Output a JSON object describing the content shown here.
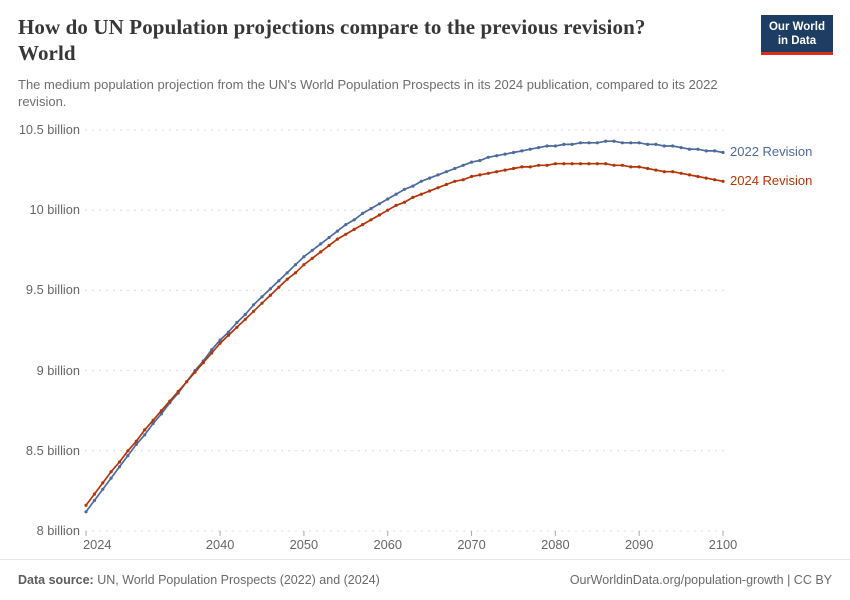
{
  "header": {
    "title_line1": "How do UN Population projections compare to the previous revision?",
    "title_line2": "World",
    "subtitle": "The medium population projection from the UN's World Population Prospects in its 2024 publication, compared to its 2022 revision.",
    "logo": {
      "line1": "Our World",
      "line2": "in Data",
      "bg_color": "#1d3d63",
      "accent_color": "#dc2e1c"
    }
  },
  "chart_data": {
    "type": "line",
    "title": "How do UN Population projections compare to the previous revision? World",
    "xlabel": "",
    "ylabel": "",
    "xlim": [
      2024,
      2100
    ],
    "ylim": [
      8,
      10.5
    ],
    "grid": "horizontal-dashed",
    "legend_position": "line-end-labels",
    "x": [
      2024,
      2025,
      2026,
      2027,
      2028,
      2029,
      2030,
      2031,
      2032,
      2033,
      2034,
      2035,
      2036,
      2037,
      2038,
      2039,
      2040,
      2041,
      2042,
      2043,
      2044,
      2045,
      2046,
      2047,
      2048,
      2049,
      2050,
      2051,
      2052,
      2053,
      2054,
      2055,
      2056,
      2057,
      2058,
      2059,
      2060,
      2061,
      2062,
      2063,
      2064,
      2065,
      2066,
      2067,
      2068,
      2069,
      2070,
      2071,
      2072,
      2073,
      2074,
      2075,
      2076,
      2077,
      2078,
      2079,
      2080,
      2081,
      2082,
      2083,
      2084,
      2085,
      2086,
      2087,
      2088,
      2089,
      2090,
      2091,
      2092,
      2093,
      2094,
      2095,
      2096,
      2097,
      2098,
      2099,
      2100
    ],
    "series": [
      {
        "name": "2022 Revision",
        "color": "#4c6a9c",
        "unit": "billion",
        "values": [
          8.12,
          8.19,
          8.26,
          8.33,
          8.4,
          8.47,
          8.54,
          8.6,
          8.67,
          8.73,
          8.8,
          8.86,
          8.93,
          9.0,
          9.06,
          9.13,
          9.19,
          9.24,
          9.3,
          9.35,
          9.41,
          9.46,
          9.51,
          9.56,
          9.61,
          9.66,
          9.71,
          9.75,
          9.79,
          9.83,
          9.87,
          9.91,
          9.94,
          9.98,
          10.01,
          10.04,
          10.07,
          10.1,
          10.13,
          10.15,
          10.18,
          10.2,
          10.22,
          10.24,
          10.26,
          10.28,
          10.3,
          10.31,
          10.33,
          10.34,
          10.35,
          10.36,
          10.37,
          10.38,
          10.39,
          10.4,
          10.4,
          10.41,
          10.41,
          10.42,
          10.42,
          10.42,
          10.43,
          10.43,
          10.42,
          10.42,
          10.42,
          10.41,
          10.41,
          10.4,
          10.4,
          10.39,
          10.38,
          10.38,
          10.37,
          10.37,
          10.36
        ]
      },
      {
        "name": "2024 Revision",
        "color": "#b13507",
        "unit": "billion",
        "values": [
          8.16,
          8.23,
          8.3,
          8.37,
          8.43,
          8.5,
          8.56,
          8.63,
          8.69,
          8.75,
          8.81,
          8.87,
          8.93,
          8.99,
          9.05,
          9.11,
          9.17,
          9.22,
          9.27,
          9.32,
          9.37,
          9.42,
          9.47,
          9.52,
          9.57,
          9.61,
          9.66,
          9.7,
          9.74,
          9.78,
          9.82,
          9.85,
          9.88,
          9.91,
          9.94,
          9.97,
          10.0,
          10.03,
          10.05,
          10.08,
          10.1,
          10.12,
          10.14,
          10.16,
          10.18,
          10.19,
          10.21,
          10.22,
          10.23,
          10.24,
          10.25,
          10.26,
          10.27,
          10.27,
          10.28,
          10.28,
          10.29,
          10.29,
          10.29,
          10.29,
          10.29,
          10.29,
          10.29,
          10.28,
          10.28,
          10.27,
          10.27,
          10.26,
          10.25,
          10.24,
          10.24,
          10.23,
          10.22,
          10.21,
          10.2,
          10.19,
          10.18
        ]
      }
    ],
    "y_ticks": [
      {
        "value": 10.5,
        "label": "10.5 billion"
      },
      {
        "value": 10,
        "label": "10 billion"
      },
      {
        "value": 9.5,
        "label": "9.5 billion"
      },
      {
        "value": 9,
        "label": "9 billion"
      },
      {
        "value": 8.5,
        "label": "8.5 billion"
      },
      {
        "value": 8,
        "label": "8 billion"
      }
    ],
    "x_ticks": [
      {
        "value": 2024,
        "label": "2024",
        "align": "left"
      },
      {
        "value": 2040,
        "label": "2040",
        "align": "center"
      },
      {
        "value": 2050,
        "label": "2050",
        "align": "center"
      },
      {
        "value": 2060,
        "label": "2060",
        "align": "center"
      },
      {
        "value": 2070,
        "label": "2070",
        "align": "center"
      },
      {
        "value": 2080,
        "label": "2080",
        "align": "center"
      },
      {
        "value": 2090,
        "label": "2090",
        "align": "center"
      },
      {
        "value": 2100,
        "label": "2100",
        "align": "center"
      }
    ]
  },
  "footer": {
    "source_label": "Data source:",
    "source_text": " UN, World Population Prospects (2022) and (2024)",
    "right_text": "OurWorldinData.org/population-growth | CC BY"
  }
}
